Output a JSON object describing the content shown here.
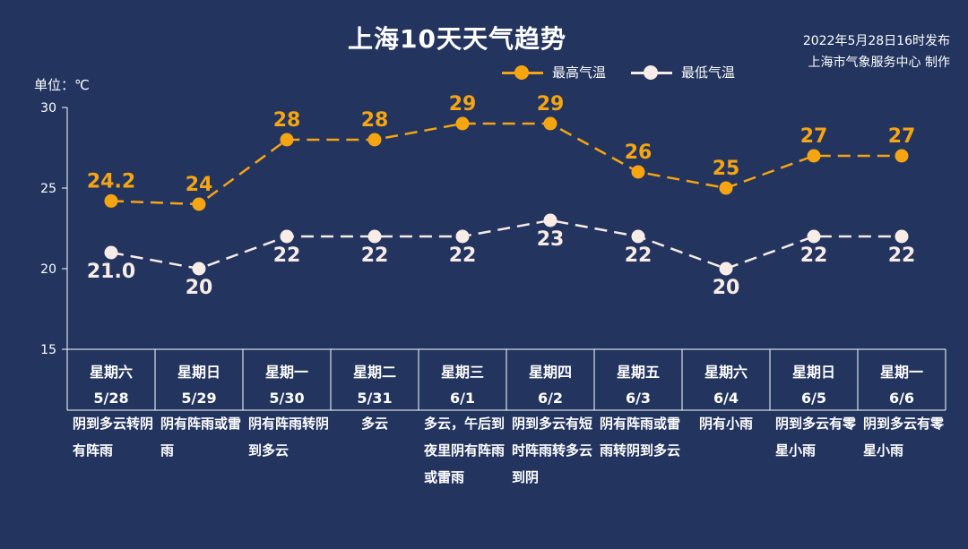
{
  "title": "上海10天天气趋势",
  "publish": {
    "time": "2022年5月28日16时发布",
    "org": "上海市气象服务中心 制作"
  },
  "unit_label": "单位：℃",
  "legend": {
    "high": "最高气温",
    "low": "最低气温"
  },
  "colors": {
    "background": "#23345f",
    "high": "#f5a511",
    "low": "#f7ece6"
  },
  "chart_data": {
    "type": "line",
    "categories": [
      "5/28",
      "5/29",
      "5/30",
      "5/31",
      "6/1",
      "6/2",
      "6/3",
      "6/4",
      "6/5",
      "6/6"
    ],
    "weekdays": [
      "星期六",
      "星期日",
      "星期一",
      "星期二",
      "星期三",
      "星期四",
      "星期五",
      "星期六",
      "星期日",
      "星期一"
    ],
    "series": [
      {
        "name": "最高气温",
        "values": [
          24.2,
          24,
          28,
          28,
          29,
          29,
          26,
          25,
          27,
          27
        ],
        "labels": [
          "24.2",
          "24",
          "28",
          "28",
          "29",
          "29",
          "26",
          "25",
          "27",
          "27"
        ]
      },
      {
        "name": "最低气温",
        "values": [
          21.0,
          20,
          22,
          22,
          22,
          23,
          22,
          20,
          22,
          22
        ],
        "labels": [
          "21.0",
          "20",
          "22",
          "22",
          "22",
          "23",
          "22",
          "20",
          "22",
          "22"
        ]
      }
    ],
    "ylim": [
      15,
      30
    ],
    "yticks": [
      15,
      20,
      25,
      30
    ],
    "descriptions": [
      "阴到多云转阴有阵雨",
      "阴有阵雨或雷雨",
      "阴有阵雨转阴到多云",
      "多云",
      "多云，午后到夜里阴有阵雨或雷雨",
      "阴到多云有短时阵雨转多云到阴",
      "阴有阵雨或雷雨转阴到多云",
      "阴有小雨",
      "阴到多云有零星小雨",
      "阴到多云有零星小雨"
    ]
  }
}
